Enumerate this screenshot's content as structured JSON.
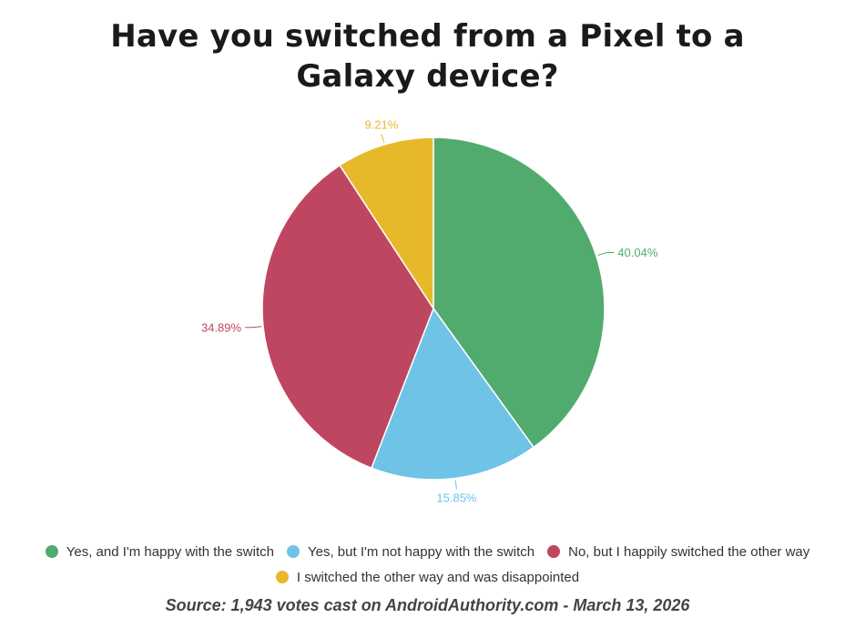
{
  "chart_data": {
    "type": "pie",
    "title_lines": [
      "Have you switched from a Pixel to a",
      "Galaxy device?"
    ],
    "slices": [
      {
        "name": "Yes, and I'm happy with the switch",
        "value": 40.04,
        "label": "40.04%",
        "color": "#52ab6e"
      },
      {
        "name": "Yes, but I'm not happy with the switch",
        "value": 15.85,
        "label": "15.85%",
        "color": "#6ec3e7"
      },
      {
        "name": "No, but I happily switched the other way",
        "value": 34.89,
        "label": "34.89%",
        "color": "#bf4660"
      },
      {
        "name": "I switched the other way and was disappointed",
        "value": 9.21,
        "label": "9.21%",
        "color": "#e8b82b"
      }
    ],
    "legend_position": "bottom",
    "start_angle_deg": 0,
    "direction": "clockwise"
  },
  "source_note": "Source: 1,943 votes cast on AndroidAuthority.com - March 13, 2026"
}
